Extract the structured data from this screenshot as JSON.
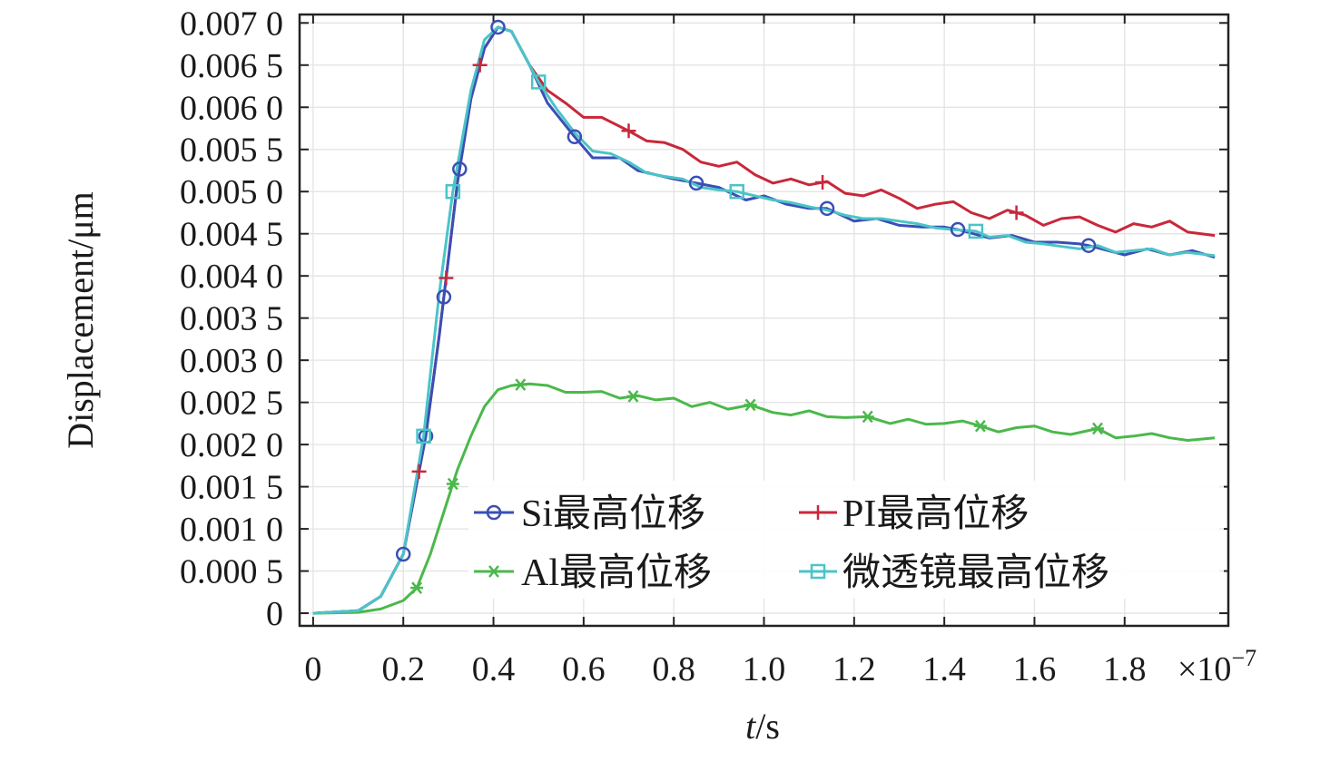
{
  "chart_data": {
    "type": "line",
    "xlabel_italic": "t",
    "xlabel_unit": "/s",
    "ylabel": "Displacement/μm",
    "x_multiplier": "×10",
    "x_multiplier_exp": "−7",
    "xlim": [
      -0.03,
      2.03
    ],
    "ylim": [
      -0.00015,
      0.0071
    ],
    "x_ticks": [
      0,
      0.2,
      0.4,
      0.6,
      0.8,
      1.0,
      1.2,
      1.4,
      1.6,
      1.8
    ],
    "x_tick_labels": [
      "0",
      "0.2",
      "0.4",
      "0.6",
      "0.8",
      "1.0",
      "1.2",
      "1.4",
      "1.6",
      "1.8"
    ],
    "y_ticks": [
      0,
      0.0005,
      0.001,
      0.0015,
      0.002,
      0.0025,
      0.003,
      0.0035,
      0.004,
      0.0045,
      0.005,
      0.0055,
      0.006,
      0.0065,
      0.007
    ],
    "y_tick_labels": [
      "0",
      "0.000 5",
      "0.001 0",
      "0.001 5",
      "0.002 0",
      "0.002 5",
      "0.003 0",
      "0.003 5",
      "0.004 0",
      "0.004 5",
      "0.005 0",
      "0.005 5",
      "0.006 0",
      "0.006 5",
      "0.007 0"
    ],
    "grid": true,
    "legend_position": "bottom-right",
    "series": [
      {
        "name": "Si最高位移",
        "color": "#3a4fb5",
        "marker": "circle",
        "x": [
          0,
          0.1,
          0.15,
          0.2,
          0.25,
          0.28,
          0.3,
          0.32,
          0.35,
          0.38,
          0.41,
          0.44,
          0.48,
          0.52,
          0.58,
          0.62,
          0.68,
          0.72,
          0.8,
          0.85,
          0.9,
          0.96,
          1.0,
          1.05,
          1.1,
          1.14,
          1.2,
          1.25,
          1.3,
          1.35,
          1.4,
          1.43,
          1.5,
          1.55,
          1.6,
          1.65,
          1.7,
          1.72,
          1.8,
          1.85,
          1.9,
          1.95,
          2.0
        ],
        "y": [
          0,
          3e-05,
          0.0002,
          0.0007,
          0.0021,
          0.0033,
          0.0042,
          0.0051,
          0.0061,
          0.0067,
          0.00695,
          0.0069,
          0.0065,
          0.00605,
          0.00565,
          0.0054,
          0.0054,
          0.00525,
          0.00515,
          0.0051,
          0.00505,
          0.0049,
          0.00495,
          0.00485,
          0.0048,
          0.0048,
          0.00465,
          0.00468,
          0.0046,
          0.00458,
          0.00458,
          0.00455,
          0.00445,
          0.00448,
          0.0044,
          0.0044,
          0.00438,
          0.00436,
          0.00425,
          0.00432,
          0.00425,
          0.0043,
          0.00422
        ],
        "marker_x": [
          0.2,
          0.25,
          0.29,
          0.325,
          0.41,
          0.58,
          0.85,
          1.14,
          1.43,
          1.72
        ]
      },
      {
        "name": "PI最高位移",
        "color": "#c8283a",
        "marker": "plus",
        "x": [
          0,
          0.1,
          0.15,
          0.2,
          0.25,
          0.28,
          0.3,
          0.32,
          0.35,
          0.38,
          0.41,
          0.44,
          0.48,
          0.52,
          0.56,
          0.6,
          0.64,
          0.7,
          0.74,
          0.78,
          0.82,
          0.86,
          0.9,
          0.94,
          0.98,
          1.02,
          1.06,
          1.1,
          1.14,
          1.18,
          1.22,
          1.26,
          1.3,
          1.34,
          1.38,
          1.42,
          1.46,
          1.5,
          1.54,
          1.58,
          1.62,
          1.66,
          1.7,
          1.74,
          1.78,
          1.82,
          1.86,
          1.9,
          1.94,
          2.0
        ],
        "y": [
          0,
          3e-05,
          0.0002,
          0.0007,
          0.0021,
          0.0033,
          0.0042,
          0.0051,
          0.0061,
          0.0067,
          0.00695,
          0.0069,
          0.0065,
          0.0062,
          0.00605,
          0.00588,
          0.00588,
          0.00572,
          0.0056,
          0.00558,
          0.0055,
          0.00535,
          0.0053,
          0.00535,
          0.0052,
          0.0051,
          0.00515,
          0.00508,
          0.00512,
          0.00498,
          0.00495,
          0.00502,
          0.00492,
          0.0048,
          0.00485,
          0.00488,
          0.00475,
          0.00468,
          0.00478,
          0.00472,
          0.0046,
          0.00468,
          0.0047,
          0.0046,
          0.00452,
          0.00462,
          0.00458,
          0.00465,
          0.00452,
          0.00448
        ],
        "marker_x": [
          0.235,
          0.295,
          0.37,
          0.7,
          1.13,
          1.56
        ]
      },
      {
        "name": "Al最高位移",
        "color": "#4bb84b",
        "marker": "star",
        "x": [
          0,
          0.1,
          0.15,
          0.2,
          0.23,
          0.26,
          0.29,
          0.32,
          0.35,
          0.38,
          0.41,
          0.44,
          0.48,
          0.52,
          0.56,
          0.6,
          0.64,
          0.68,
          0.72,
          0.76,
          0.8,
          0.84,
          0.88,
          0.92,
          0.97,
          1.02,
          1.06,
          1.1,
          1.14,
          1.18,
          1.23,
          1.28,
          1.32,
          1.36,
          1.4,
          1.44,
          1.48,
          1.52,
          1.56,
          1.6,
          1.64,
          1.68,
          1.74,
          1.78,
          1.82,
          1.86,
          1.9,
          1.94,
          2.0
        ],
        "y": [
          0,
          1e-05,
          5e-05,
          0.00015,
          0.0003,
          0.0007,
          0.0012,
          0.0017,
          0.0021,
          0.00245,
          0.00265,
          0.0027,
          0.00272,
          0.0027,
          0.00262,
          0.00262,
          0.00263,
          0.00255,
          0.00258,
          0.00253,
          0.00255,
          0.00245,
          0.0025,
          0.00242,
          0.00247,
          0.00238,
          0.00235,
          0.0024,
          0.00233,
          0.00232,
          0.00233,
          0.00225,
          0.0023,
          0.00224,
          0.00225,
          0.00228,
          0.00222,
          0.00215,
          0.0022,
          0.00222,
          0.00215,
          0.00212,
          0.00219,
          0.00208,
          0.0021,
          0.00213,
          0.00208,
          0.00205,
          0.00208
        ],
        "marker_x": [
          0.23,
          0.31,
          0.46,
          0.71,
          0.97,
          1.23,
          1.48,
          1.74
        ]
      },
      {
        "name": "微透镜最高位移",
        "color": "#4bc4c8",
        "marker": "square",
        "x": [
          0,
          0.1,
          0.15,
          0.2,
          0.245,
          0.28,
          0.31,
          0.32,
          0.35,
          0.38,
          0.41,
          0.44,
          0.47,
          0.5,
          0.54,
          0.58,
          0.62,
          0.66,
          0.7,
          0.74,
          0.78,
          0.82,
          0.86,
          0.9,
          0.94,
          0.98,
          1.02,
          1.06,
          1.1,
          1.14,
          1.18,
          1.22,
          1.26,
          1.3,
          1.34,
          1.38,
          1.42,
          1.47,
          1.5,
          1.54,
          1.58,
          1.62,
          1.66,
          1.7,
          1.74,
          1.78,
          1.82,
          1.86,
          1.9,
          1.94,
          2.0
        ],
        "y": [
          0,
          3e-05,
          0.0002,
          0.0007,
          0.0021,
          0.0038,
          0.005,
          0.0053,
          0.0062,
          0.0068,
          0.00695,
          0.0069,
          0.0066,
          0.0063,
          0.00598,
          0.0057,
          0.00548,
          0.00545,
          0.00535,
          0.00522,
          0.00518,
          0.00515,
          0.00505,
          0.00502,
          0.005,
          0.00495,
          0.0049,
          0.00487,
          0.00482,
          0.00478,
          0.00472,
          0.00468,
          0.00468,
          0.00465,
          0.00462,
          0.00457,
          0.00455,
          0.00453,
          0.00446,
          0.00448,
          0.0044,
          0.00438,
          0.00435,
          0.00432,
          0.00436,
          0.00428,
          0.0043,
          0.00432,
          0.00425,
          0.00428,
          0.00424
        ],
        "marker_x": [
          0.245,
          0.31,
          0.5,
          0.94,
          1.47
        ]
      }
    ]
  }
}
